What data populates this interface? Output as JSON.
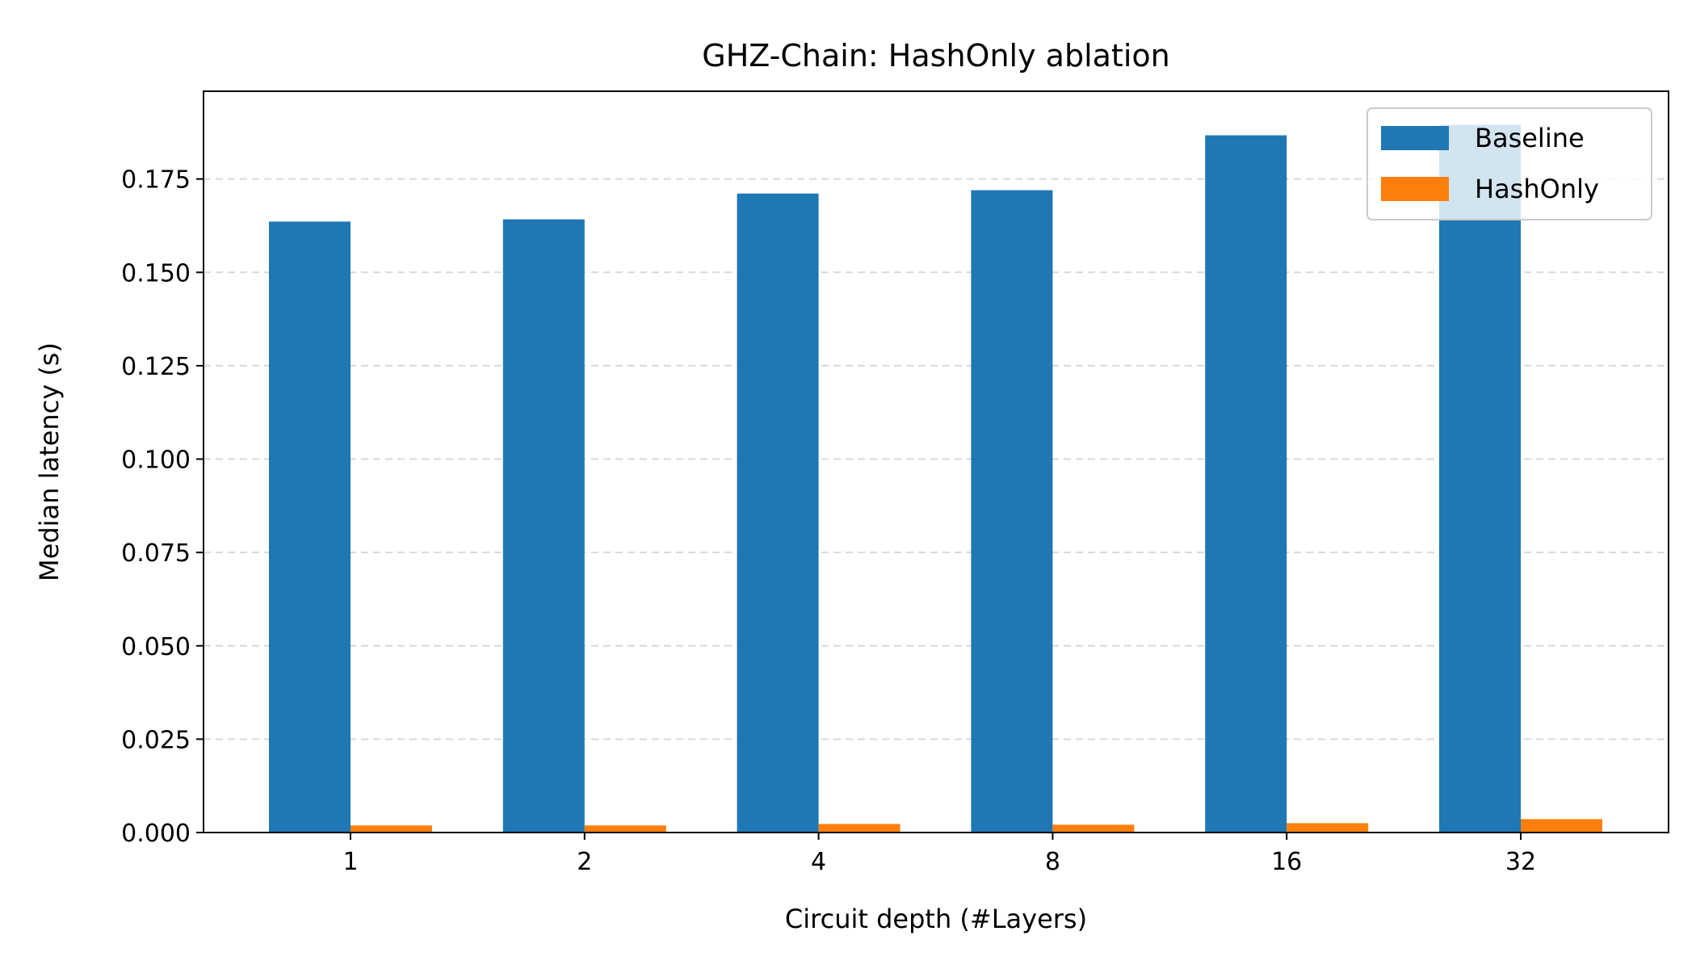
{
  "chart_data": {
    "type": "bar",
    "title": "GHZ-Chain: HashOnly ablation",
    "xlabel": "Circuit depth (#Layers)",
    "ylabel": "Median latency (s)",
    "categories": [
      "1",
      "2",
      "4",
      "8",
      "16",
      "32"
    ],
    "series": [
      {
        "name": "Baseline",
        "color": "#1f77b4",
        "values": [
          0.1636,
          0.1642,
          0.1711,
          0.172,
          0.1867,
          0.1895
        ]
      },
      {
        "name": "HashOnly",
        "color": "#ff7f0e",
        "values": [
          0.0019,
          0.0019,
          0.0023,
          0.0021,
          0.0025,
          0.0036
        ]
      }
    ],
    "ylim": [
      0,
      0.1985
    ],
    "yticks": [
      "0.000",
      "0.025",
      "0.050",
      "0.075",
      "0.100",
      "0.125",
      "0.150",
      "0.175"
    ],
    "grid": "horizontal dashed",
    "legend_position": "top-right"
  }
}
